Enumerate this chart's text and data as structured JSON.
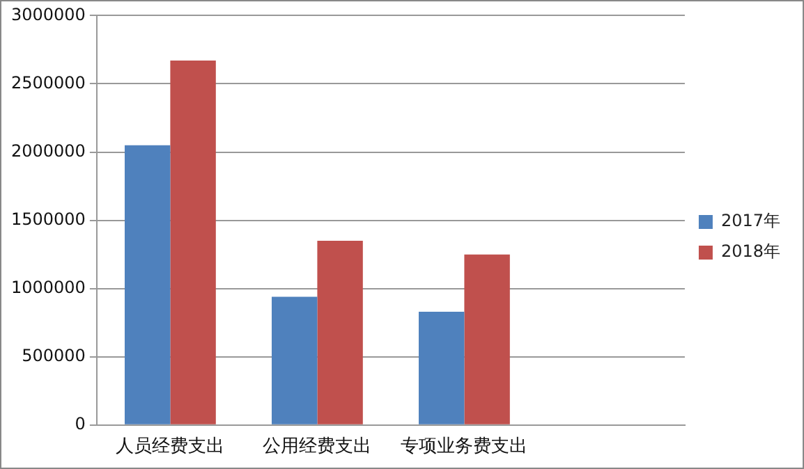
{
  "chart_data": {
    "type": "bar",
    "categories": [
      "人员经费支出",
      "公用经费支出",
      "专项业务费支出",
      null
    ],
    "series": [
      {
        "name": "2017年",
        "color": "#4f81bd",
        "values": [
          2050000,
          940000,
          830000,
          null
        ]
      },
      {
        "name": "2018年",
        "color": "#c0504d",
        "values": [
          2670000,
          1350000,
          1250000,
          null
        ]
      }
    ],
    "ylim": [
      0,
      3000000
    ],
    "yticks": [
      0,
      500000,
      1000000,
      1500000,
      2000000,
      2500000,
      3000000
    ],
    "grid": "y",
    "legend": "right"
  }
}
